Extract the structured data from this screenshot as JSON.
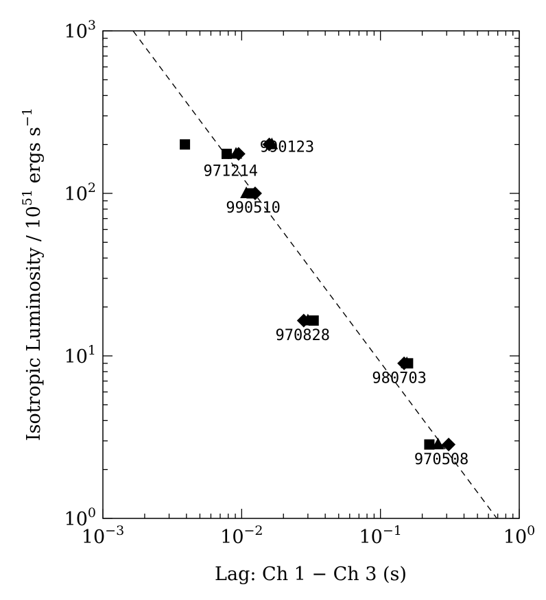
{
  "chart_data": {
    "type": "scatter",
    "title": "",
    "xlabel": "Lag: Ch 1 − Ch 3 (s)",
    "ylabel_parts": [
      "Isotropic Luminosity / 10",
      "51",
      " ergs s",
      "−1"
    ],
    "xscale": "log",
    "yscale": "log",
    "xlim": [
      0.001,
      1
    ],
    "ylim": [
      1,
      1000
    ],
    "x_ticks": [
      {
        "value": 0.001,
        "base": "10",
        "exp": "−3"
      },
      {
        "value": 0.01,
        "base": "10",
        "exp": "−2"
      },
      {
        "value": 0.1,
        "base": "10",
        "exp": "−1"
      },
      {
        "value": 1,
        "base": "10",
        "exp": "0"
      }
    ],
    "y_ticks": [
      {
        "value": 1,
        "base": "10",
        "exp": "0"
      },
      {
        "value": 10,
        "base": "10",
        "exp": "1"
      },
      {
        "value": 100,
        "base": "10",
        "exp": "2"
      },
      {
        "value": 1000,
        "base": "10",
        "exp": "3"
      }
    ],
    "fit_line": {
      "style": "dashed",
      "points": [
        [
          0.00165,
          1000
        ],
        [
          0.69,
          1
        ]
      ]
    },
    "series": [
      {
        "name": "square",
        "marker": "square",
        "points": [
          [
            0.0039,
            200
          ],
          [
            0.0078,
            175
          ],
          [
            0.0118,
            100
          ],
          [
            0.033,
            16.5
          ],
          [
            0.158,
            9.0
          ],
          [
            0.225,
            2.85
          ]
        ]
      },
      {
        "name": "diamond",
        "marker": "diamond",
        "points": [
          [
            0.0095,
            175
          ],
          [
            0.0125,
            100
          ],
          [
            0.0158,
            200
          ],
          [
            0.028,
            16.5
          ],
          [
            0.148,
            9.0
          ],
          [
            0.31,
            2.85
          ]
        ]
      },
      {
        "name": "triangle",
        "marker": "triangle",
        "points": [
          [
            0.0091,
            175
          ],
          [
            0.0108,
            100
          ],
          [
            0.0165,
            200
          ],
          [
            0.03,
            16.5
          ],
          [
            0.155,
            9.0
          ],
          [
            0.26,
            2.85
          ]
        ]
      }
    ],
    "annotations": [
      {
        "text": "990123",
        "x": 0.0135,
        "y": 180,
        "anchor": "start"
      },
      {
        "text": "971214",
        "x": 0.0053,
        "y": 128,
        "anchor": "start"
      },
      {
        "text": "990510",
        "x": 0.0077,
        "y": 76,
        "anchor": "start"
      },
      {
        "text": "970828",
        "x": 0.0175,
        "y": 12.5,
        "anchor": "start"
      },
      {
        "text": "980703",
        "x": 0.087,
        "y": 6.8,
        "anchor": "start"
      },
      {
        "text": "970508",
        "x": 0.175,
        "y": 2.15,
        "anchor": "start"
      }
    ]
  }
}
